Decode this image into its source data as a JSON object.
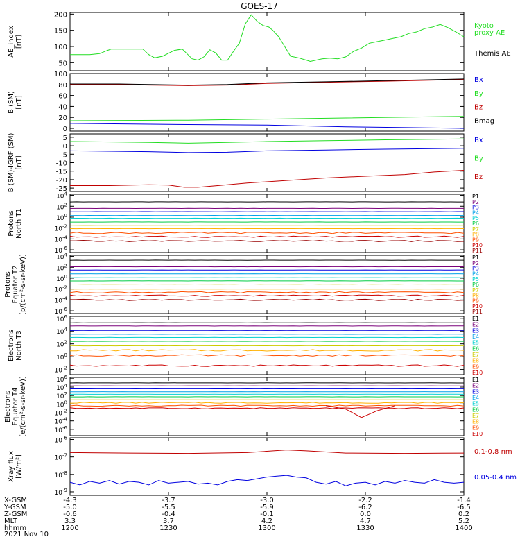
{
  "title": "GOES-17",
  "colors": {
    "black": "#000000",
    "red": "#c00000",
    "green": "#22dd22",
    "blue": "#0000e0",
    "purple": "#8800a0",
    "cyan": "#00c8e8",
    "yellow": "#e8e800",
    "orange": "#ffa000",
    "p1": "#000000",
    "p2": "#7a007a",
    "p3": "#0000e0",
    "p4": "#00a0e8",
    "p5": "#00d0d0",
    "p6": "#00cc44",
    "p7": "#cccc00",
    "p8": "#ffb000",
    "p9": "#ff5000",
    "p10": "#cc0000",
    "p11": "#990000"
  },
  "xaxis": {
    "ticks": [
      "1200",
      "1230",
      "1300",
      "1330",
      "1400"
    ],
    "rows": [
      {
        "label": "X-GSM",
        "values": [
          "-4.3",
          "-3.7",
          "-3.0",
          "-2.2",
          "-1.4"
        ]
      },
      {
        "label": "Y-GSM",
        "values": [
          "-5.0",
          "-5.5",
          "-5.9",
          "-6.2",
          "-6.5"
        ]
      },
      {
        "label": "Z-GSM",
        "values": [
          "-0.6",
          "-0.4",
          "-0.1",
          "0.0",
          "0.2"
        ]
      },
      {
        "label": "MLT",
        "values": [
          "3.3",
          "3.7",
          "4.2",
          "4.7",
          "5.2"
        ]
      },
      {
        "label": "hhmm",
        "values": [
          "1200",
          "1230",
          "1300",
          "1330",
          "1400"
        ]
      }
    ],
    "date": "2021 Nov 10"
  },
  "chart_data": [
    {
      "type": "line",
      "id": "ae",
      "ylabel": [
        "AE_index",
        "[nT]"
      ],
      "yticks": [
        "50",
        "100",
        "150",
        "200"
      ],
      "ylim": [
        25,
        205
      ],
      "log": false,
      "legend": [
        {
          "text": "Kyoto",
          "color": "green"
        },
        {
          "text": "proxy AE",
          "color": "green"
        },
        {
          "text": "Themis AE",
          "color": "black"
        }
      ],
      "series": [
        {
          "name": "Kyoto proxy AE",
          "color": "green",
          "t": [
            1200,
            1210,
            1215,
            1219,
            1221,
            1227,
            1232,
            1237,
            1240,
            1243,
            1247,
            1253,
            1257,
            1259,
            1262,
            1265,
            1268,
            1271,
            1274,
            1277,
            1280,
            1283,
            1286,
            1289,
            1292,
            1295,
            1298,
            1301,
            1303,
            1306,
            1309,
            1312,
            1316,
            1320,
            1322,
            1325,
            1328,
            1332,
            1336,
            1340,
            1344,
            1348,
            1352,
            1356,
            1360,
            1364,
            1368,
            1372,
            1376,
            1380,
            1384,
            1388,
            1392,
            1396,
            1400
          ],
          "v": [
            75,
            75,
            78,
            88,
            92,
            92,
            92,
            92,
            75,
            65,
            70,
            88,
            92,
            80,
            62,
            58,
            68,
            90,
            80,
            58,
            58,
            85,
            110,
            170,
            198,
            178,
            165,
            160,
            150,
            130,
            100,
            70,
            65,
            58,
            54,
            58,
            62,
            64,
            62,
            68,
            85,
            95,
            110,
            115,
            120,
            125,
            130,
            140,
            145,
            155,
            160,
            168,
            158,
            145,
            130
          ]
        }
      ]
    },
    {
      "type": "line",
      "id": "bsm",
      "ylabel": [
        "B (SM)",
        "[nT]"
      ],
      "yticks": [
        "0",
        "20",
        "40",
        "60",
        "80",
        "100"
      ],
      "ylim": [
        -5,
        100
      ],
      "log": false,
      "legend": [
        {
          "text": "Bx",
          "color": "blue"
        },
        {
          "text": "By",
          "color": "green"
        },
        {
          "text": "Bz",
          "color": "red"
        },
        {
          "text": "Bmag",
          "color": "black"
        }
      ],
      "series": [
        {
          "name": "Bx",
          "color": "blue",
          "t": [
            1200,
            1260,
            1300,
            1340,
            1400
          ],
          "v": [
            9,
            7,
            6,
            3,
            0
          ]
        },
        {
          "name": "By",
          "color": "green",
          "t": [
            1200,
            1260,
            1300,
            1340,
            1400
          ],
          "v": [
            14,
            15,
            17,
            19,
            22
          ]
        },
        {
          "name": "Bz",
          "color": "red",
          "t": [
            1200,
            1225,
            1240,
            1260,
            1280,
            1300,
            1330,
            1360,
            1400
          ],
          "v": [
            80,
            80,
            79,
            78,
            79,
            82,
            84,
            86,
            89
          ]
        },
        {
          "name": "Bmag",
          "color": "black",
          "t": [
            1200,
            1225,
            1240,
            1260,
            1280,
            1300,
            1330,
            1360,
            1400
          ],
          "v": [
            81,
            81,
            80,
            79,
            80,
            83,
            85,
            87,
            90
          ]
        }
      ]
    },
    {
      "type": "line",
      "id": "bigrf",
      "ylabel": [
        "B (SM)-IGRF (SM)",
        "[nT]"
      ],
      "yticks": [
        "-25",
        "-20",
        "-15",
        "-10",
        "-5",
        "0",
        "5"
      ],
      "ylim": [
        -27,
        7
      ],
      "log": false,
      "legend": [
        {
          "text": "Bx",
          "color": "blue"
        },
        {
          "text": "By",
          "color": "green"
        },
        {
          "text": "Bz",
          "color": "red"
        }
      ],
      "series": [
        {
          "name": "Bx",
          "color": "blue",
          "t": [
            1200,
            1240,
            1260,
            1280,
            1300,
            1330,
            1360,
            1400
          ],
          "v": [
            -3,
            -3.5,
            -4,
            -3.8,
            -3,
            -2.5,
            -2,
            -1.5
          ]
        },
        {
          "name": "By",
          "color": "green",
          "t": [
            1200,
            1240,
            1260,
            1280,
            1300,
            1330,
            1360,
            1400
          ],
          "v": [
            2.5,
            2,
            1.5,
            2,
            2.5,
            3,
            3.5,
            4
          ]
        },
        {
          "name": "Bz",
          "color": "red",
          "t": [
            1200,
            1220,
            1240,
            1250,
            1258,
            1265,
            1275,
            1290,
            1310,
            1330,
            1350,
            1370,
            1385,
            1400
          ],
          "v": [
            -23.5,
            -23.5,
            -23,
            -23.2,
            -24.5,
            -24.5,
            -23.5,
            -22,
            -20.5,
            -19,
            -18,
            -17,
            -15.5,
            -14.5
          ]
        }
      ]
    },
    {
      "type": "line",
      "id": "prot1",
      "ylabel": [
        "Protons",
        "North T1"
      ],
      "yticks": [
        "10^-6",
        "10^-4",
        "10^-2",
        "10^0",
        "10^2",
        "10^4"
      ],
      "ylim": [
        -6.5,
        4.2
      ],
      "log": true,
      "legend": [
        "P1",
        "P2",
        "P3",
        "P4",
        "P5",
        "P6",
        "P7",
        "P8",
        "P9",
        "P10",
        "P11"
      ],
      "levels": [
        2.8,
        1.6,
        1.0,
        0.3,
        -0.2,
        -0.9,
        -1.5,
        -2.1,
        -2.9,
        -3.6,
        -4.4
      ],
      "series_colors": [
        "p1",
        "p2",
        "p3",
        "p4",
        "p5",
        "p6",
        "p7",
        "p8",
        "p9",
        "p10",
        "p11"
      ]
    },
    {
      "type": "line",
      "id": "prot2",
      "ylabel": [
        "Protons",
        "Equator T2",
        "[p/(cm²-s-sr-keV)]"
      ],
      "yticks": [
        "10^-6",
        "10^-4",
        "10^-2",
        "10^0",
        "10^2",
        "10^4"
      ],
      "ylim": [
        -6.5,
        4.2
      ],
      "log": true,
      "legend": [
        "P1",
        "P2",
        "P3",
        "P4",
        "P5",
        "P6",
        "P7",
        "P8",
        "P9",
        "P10",
        "P11"
      ],
      "levels": [
        3.3,
        2.1,
        1.5,
        0.8,
        0.1,
        -0.5,
        -1.1,
        -2.0,
        -2.6,
        -3.2,
        -4.0
      ],
      "series_colors": [
        "p1",
        "p2",
        "p3",
        "p4",
        "p5",
        "p6",
        "p7",
        "p8",
        "p9",
        "p10",
        "p11"
      ]
    },
    {
      "type": "line",
      "id": "elec3",
      "ylabel": [
        "Electrons",
        "North T3"
      ],
      "yticks": [
        "10^-2",
        "10^0",
        "10^2",
        "10^4",
        "10^6"
      ],
      "ylim": [
        -2.8,
        6.3
      ],
      "log": true,
      "legend": [
        "E1",
        "E2",
        "E3",
        "E4",
        "E5",
        "E6",
        "E7",
        "E8",
        "E9",
        "E10"
      ],
      "levels": [
        5.3,
        4.8,
        4.1,
        3.5,
        3.0,
        2.4,
        1.7,
        1.0,
        0.2,
        -1.4
      ],
      "series_colors": [
        "p1",
        "p2",
        "p3",
        "p4",
        "p5",
        "p6",
        "p7",
        "p8",
        "p9",
        "p10"
      ]
    },
    {
      "type": "line",
      "id": "elec4",
      "ylabel": [
        "Electrons",
        "Equator T4",
        "[e/(cm²-s-sr-keV)]"
      ],
      "yticks": [
        "10^-6",
        "10^-4",
        "10^-2",
        "10^0",
        "10^2",
        "10^4",
        "10^6"
      ],
      "ylim": [
        -7.5,
        6.3
      ],
      "log": true,
      "legend": [
        "E1",
        "E2",
        "E3",
        "E4",
        "E5",
        "E6",
        "E7",
        "E8",
        "E9",
        "E10"
      ],
      "levels": [
        5.0,
        4.3,
        3.6,
        2.9,
        2.3,
        1.7,
        1.0,
        0.3,
        -0.4,
        -1.0
      ],
      "series_colors": [
        "p1",
        "p2",
        "p3",
        "p4",
        "p5",
        "p6",
        "p7",
        "p8",
        "p9",
        "p10"
      ]
    },
    {
      "type": "line",
      "id": "xray",
      "ylabel": [
        "Xray flux",
        "[W/m²]"
      ],
      "yticks": [
        "10^-9",
        "10^-8",
        "10^-7",
        "10^-6"
      ],
      "ylim": [
        -9.2,
        -5.9
      ],
      "log": true,
      "legend": [
        {
          "text": "0.1-0.8 nm",
          "color": "red"
        },
        {
          "text": "0.05-0.4 nm",
          "color": "blue"
        }
      ],
      "series": [
        {
          "name": "0.1-0.8 nm",
          "color": "red",
          "t": [
            1200,
            1230,
            1260,
            1290,
            1310,
            1320,
            1340,
            1370,
            1400
          ],
          "v": [
            -6.75,
            -6.78,
            -6.8,
            -6.75,
            -6.6,
            -6.65,
            -6.78,
            -6.8,
            -6.78
          ]
        },
        {
          "name": "0.05-0.4 nm",
          "color": "blue",
          "t": [
            1200,
            1205,
            1210,
            1215,
            1220,
            1225,
            1230,
            1235,
            1240,
            1245,
            1250,
            1255,
            1260,
            1265,
            1270,
            1275,
            1280,
            1285,
            1290,
            1295,
            1300,
            1305,
            1310,
            1315,
            1320,
            1325,
            1330,
            1335,
            1340,
            1345,
            1350,
            1355,
            1360,
            1365,
            1370,
            1375,
            1380,
            1385,
            1390,
            1395,
            1400
          ],
          "v": [
            -8.45,
            -8.6,
            -8.4,
            -8.5,
            -8.35,
            -8.55,
            -8.4,
            -8.45,
            -8.6,
            -8.35,
            -8.5,
            -8.45,
            -8.4,
            -8.55,
            -8.5,
            -8.6,
            -8.4,
            -8.3,
            -8.35,
            -8.25,
            -8.15,
            -8.1,
            -8.05,
            -8.15,
            -8.2,
            -8.45,
            -8.55,
            -8.4,
            -8.65,
            -8.5,
            -8.45,
            -8.6,
            -8.4,
            -8.5,
            -8.35,
            -8.45,
            -8.5,
            -8.3,
            -8.45,
            -8.5,
            -8.45
          ]
        }
      ]
    }
  ]
}
